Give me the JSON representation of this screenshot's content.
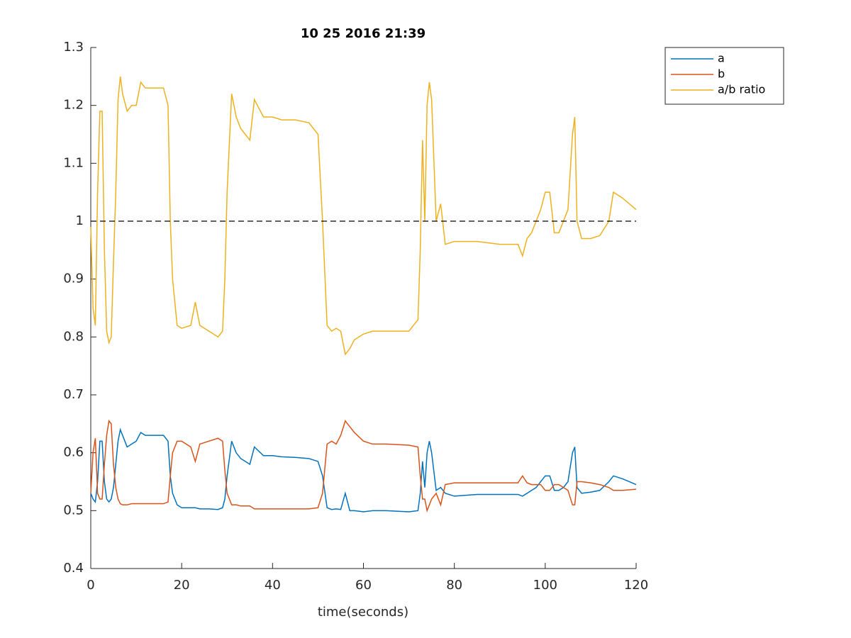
{
  "chart_data": {
    "type": "line",
    "title": "10 25 2016 21:39",
    "x_label": "time(seconds)",
    "x": [
      0,
      0.5,
      1,
      1.5,
      2,
      2.5,
      3,
      3.5,
      4,
      4.5,
      5,
      5.5,
      6,
      6.5,
      7,
      8,
      9,
      10,
      11,
      12,
      14,
      16,
      17,
      17.5,
      18,
      19,
      20,
      22,
      23,
      24,
      26,
      28,
      29,
      29.5,
      30,
      31,
      32,
      33,
      34,
      35,
      36,
      38,
      40,
      42,
      45,
      48,
      50,
      51,
      52,
      53,
      54,
      55,
      56,
      57,
      58,
      60,
      62,
      65,
      70,
      72,
      72.5,
      73,
      73.5,
      74,
      74.5,
      75,
      76,
      77,
      78,
      80,
      85,
      90,
      94,
      95,
      96,
      97,
      98,
      99,
      100,
      101,
      102,
      103,
      104,
      105,
      106,
      106.5,
      107,
      108,
      110,
      112,
      114,
      115,
      117,
      120
    ],
    "series": [
      {
        "name": "a",
        "color": "#0072bd",
        "values": [
          0.53,
          0.52,
          0.515,
          0.55,
          0.62,
          0.62,
          0.55,
          0.52,
          0.515,
          0.52,
          0.54,
          0.58,
          0.62,
          0.64,
          0.63,
          0.61,
          0.615,
          0.62,
          0.635,
          0.63,
          0.63,
          0.63,
          0.62,
          0.56,
          0.53,
          0.51,
          0.505,
          0.505,
          0.505,
          0.503,
          0.503,
          0.502,
          0.505,
          0.52,
          0.56,
          0.62,
          0.6,
          0.59,
          0.585,
          0.58,
          0.61,
          0.595,
          0.595,
          0.593,
          0.592,
          0.59,
          0.585,
          0.56,
          0.505,
          0.502,
          0.503,
          0.502,
          0.53,
          0.5,
          0.5,
          0.498,
          0.5,
          0.5,
          0.498,
          0.5,
          0.53,
          0.585,
          0.54,
          0.6,
          0.62,
          0.6,
          0.535,
          0.54,
          0.53,
          0.525,
          0.528,
          0.528,
          0.528,
          0.525,
          0.53,
          0.535,
          0.54,
          0.55,
          0.56,
          0.56,
          0.535,
          0.535,
          0.54,
          0.55,
          0.6,
          0.61,
          0.54,
          0.53,
          0.532,
          0.535,
          0.55,
          0.56,
          0.555,
          0.545
        ]
      },
      {
        "name": "b",
        "color": "#d95319",
        "values": [
          0.53,
          0.6,
          0.625,
          0.53,
          0.52,
          0.52,
          0.58,
          0.63,
          0.655,
          0.65,
          0.58,
          0.54,
          0.52,
          0.512,
          0.51,
          0.51,
          0.512,
          0.512,
          0.512,
          0.512,
          0.512,
          0.512,
          0.515,
          0.56,
          0.6,
          0.62,
          0.62,
          0.61,
          0.585,
          0.615,
          0.62,
          0.625,
          0.62,
          0.57,
          0.53,
          0.51,
          0.51,
          0.508,
          0.508,
          0.508,
          0.503,
          0.503,
          0.503,
          0.503,
          0.503,
          0.503,
          0.505,
          0.53,
          0.615,
          0.62,
          0.615,
          0.63,
          0.655,
          0.645,
          0.635,
          0.62,
          0.615,
          0.615,
          0.613,
          0.61,
          0.56,
          0.52,
          0.52,
          0.5,
          0.51,
          0.52,
          0.53,
          0.51,
          0.545,
          0.548,
          0.548,
          0.548,
          0.548,
          0.56,
          0.548,
          0.545,
          0.545,
          0.545,
          0.535,
          0.535,
          0.545,
          0.545,
          0.54,
          0.535,
          0.51,
          0.51,
          0.55,
          0.55,
          0.548,
          0.545,
          0.54,
          0.535,
          0.535,
          0.537
        ]
      },
      {
        "name": "a/b ratio",
        "color": "#edb120",
        "values": [
          0.99,
          0.85,
          0.82,
          1.05,
          1.19,
          1.19,
          0.95,
          0.81,
          0.79,
          0.8,
          0.93,
          1.05,
          1.21,
          1.25,
          1.22,
          1.19,
          1.2,
          1.2,
          1.24,
          1.23,
          1.23,
          1.23,
          1.2,
          1.0,
          0.9,
          0.82,
          0.815,
          0.82,
          0.86,
          0.82,
          0.81,
          0.8,
          0.81,
          0.9,
          1.05,
          1.22,
          1.18,
          1.16,
          1.15,
          1.14,
          1.21,
          1.18,
          1.18,
          1.175,
          1.175,
          1.17,
          1.15,
          1.0,
          0.82,
          0.81,
          0.815,
          0.81,
          0.77,
          0.78,
          0.795,
          0.805,
          0.81,
          0.81,
          0.81,
          0.83,
          0.95,
          1.14,
          1.0,
          1.2,
          1.24,
          1.21,
          1.0,
          1.03,
          0.96,
          0.965,
          0.965,
          0.96,
          0.96,
          0.94,
          0.97,
          0.98,
          1.0,
          1.02,
          1.05,
          1.05,
          0.98,
          0.98,
          1.0,
          1.02,
          1.15,
          1.18,
          1.0,
          0.97,
          0.97,
          0.975,
          1.0,
          1.05,
          1.04,
          1.02
        ]
      }
    ],
    "hline": 1,
    "xlim": [
      0,
      120
    ],
    "xticks": [
      0,
      20,
      40,
      60,
      80,
      100,
      120
    ],
    "ylim": [
      0.4,
      1.3
    ],
    "yticks": [
      0.4,
      0.5,
      0.6,
      0.7,
      0.8,
      0.9,
      1,
      1.1,
      1.2,
      1.3
    ],
    "grid": false,
    "legend": "northeastoutside"
  }
}
